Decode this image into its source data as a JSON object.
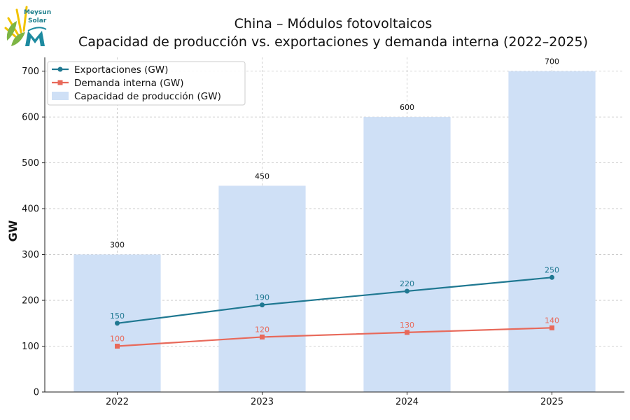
{
  "logo": {
    "line1": "Meysun",
    "line2": "Solar"
  },
  "chart_data": {
    "type": "bar",
    "title_line1": "China – Módulos fotovoltaicos",
    "title_line2": "Capacidad de producción vs. exportaciones y demanda interna (2022–2025)",
    "ylabel": "GW",
    "xlabel": "",
    "categories": [
      "2022",
      "2023",
      "2024",
      "2025"
    ],
    "ylim": [
      0,
      730
    ],
    "yticks": [
      0,
      100,
      200,
      300,
      400,
      500,
      600,
      700
    ],
    "grid": true,
    "legend_position": "top-left",
    "bars": {
      "name": "Capacidad de producción (GW)",
      "values": [
        300,
        450,
        600,
        700
      ],
      "color": "#cfe0f6"
    },
    "series": [
      {
        "name": "Exportaciones (GW)",
        "type": "line",
        "marker": "circle",
        "values": [
          150,
          190,
          220,
          250
        ],
        "color": "#1f7891"
      },
      {
        "name": "Demanda interna (GW)",
        "type": "line",
        "marker": "square",
        "values": [
          100,
          120,
          130,
          140
        ],
        "color": "#e8695a"
      }
    ]
  }
}
